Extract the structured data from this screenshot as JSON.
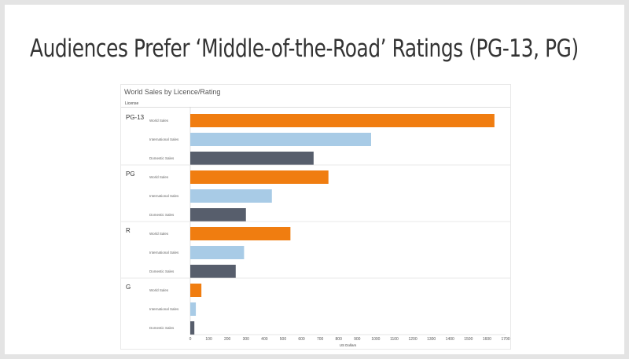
{
  "slide": {
    "title": "Audiences Prefer ‘Middle-of-the-Road’ Ratings (PG-13, PG)"
  },
  "chart_data": {
    "type": "bar",
    "orientation": "horizontal",
    "title": "World Sales by Licence/Rating",
    "row_header": "License",
    "xlabel": "US Dollars",
    "xlim": [
      0,
      1700
    ],
    "xticks": [
      "0",
      "100",
      "200",
      "300",
      "400",
      "500",
      "600",
      "700",
      "800",
      "900",
      "1000",
      "1100",
      "1200",
      "1300",
      "1400",
      "1500",
      "1600",
      "1700"
    ],
    "measures": [
      "World Sales",
      "International Sales",
      "Domestic Sales"
    ],
    "colors": {
      "World Sales": "#f07d10",
      "International Sales": "#a8cbe6",
      "Domestic Sales": "#575e6c"
    },
    "groups": [
      {
        "name": "PG-13",
        "values": [
          1640,
          975,
          665
        ]
      },
      {
        "name": "PG",
        "values": [
          745,
          440,
          300
        ]
      },
      {
        "name": "R",
        "values": [
          540,
          290,
          245
        ]
      },
      {
        "name": "G",
        "values": [
          60,
          30,
          22
        ]
      }
    ]
  }
}
